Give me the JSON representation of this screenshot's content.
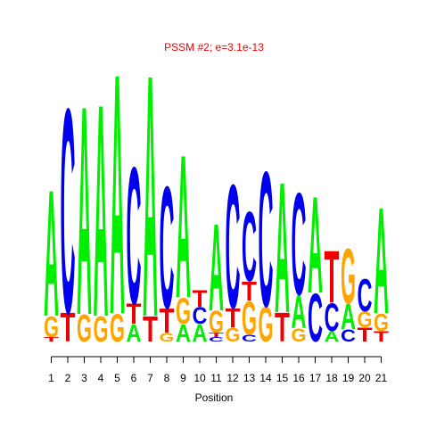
{
  "chart_data": {
    "type": "sequence-logo",
    "title": "PSSM #2; e=3.1e-13",
    "xlabel": "Position",
    "ylabel": "",
    "x": [
      1,
      2,
      3,
      4,
      5,
      6,
      7,
      8,
      9,
      10,
      11,
      12,
      13,
      14,
      15,
      16,
      17,
      18,
      19,
      20,
      21
    ],
    "colors": {
      "A": "#00ee00",
      "C": "#0000ee",
      "G": "#ffa500",
      "T": "#ee0000",
      "title": "#ee0000"
    },
    "positions": [
      {
        "position": 1,
        "letters": [
          {
            "base": "T",
            "height": 0.05
          },
          {
            "base": "G",
            "height": 0.24
          },
          {
            "base": "A",
            "height": 1.45
          }
        ]
      },
      {
        "position": 2,
        "letters": [
          {
            "base": "T",
            "height": 0.33
          },
          {
            "base": "C",
            "height": 2.35
          }
        ]
      },
      {
        "position": 3,
        "letters": [
          {
            "base": "G",
            "height": 0.31
          },
          {
            "base": "A",
            "height": 2.4
          }
        ]
      },
      {
        "position": 4,
        "letters": [
          {
            "base": "G",
            "height": 0.29
          },
          {
            "base": "A",
            "height": 2.44
          }
        ]
      },
      {
        "position": 5,
        "letters": [
          {
            "base": "G",
            "height": 0.32
          },
          {
            "base": "A",
            "height": 2.76
          }
        ]
      },
      {
        "position": 6,
        "letters": [
          {
            "base": "A",
            "height": 0.2
          },
          {
            "base": "T",
            "height": 0.23
          },
          {
            "base": "C",
            "height": 1.57
          }
        ]
      },
      {
        "position": 7,
        "letters": [
          {
            "base": "T",
            "height": 0.29
          },
          {
            "base": "A",
            "height": 2.78
          }
        ]
      },
      {
        "position": 8,
        "letters": [
          {
            "base": "G",
            "height": 0.1
          },
          {
            "base": "T",
            "height": 0.28
          },
          {
            "base": "C",
            "height": 1.4
          }
        ]
      },
      {
        "position": 9,
        "letters": [
          {
            "base": "A",
            "height": 0.2
          },
          {
            "base": "G",
            "height": 0.3
          },
          {
            "base": "A",
            "height": 1.64
          }
        ]
      },
      {
        "position": 10,
        "letters": [
          {
            "base": "A",
            "height": 0.2
          },
          {
            "base": "C",
            "height": 0.19
          },
          {
            "base": "T",
            "height": 0.19
          }
        ]
      },
      {
        "position": 11,
        "letters": [
          {
            "base": "C",
            "height": 0.05
          },
          {
            "base": "T",
            "height": 0.05
          },
          {
            "base": "G",
            "height": 0.25
          },
          {
            "base": "A",
            "height": 1.0
          }
        ]
      },
      {
        "position": 12,
        "letters": [
          {
            "base": "G",
            "height": 0.16
          },
          {
            "base": "T",
            "height": 0.22
          },
          {
            "base": "C",
            "height": 1.42
          }
        ]
      },
      {
        "position": 13,
        "letters": [
          {
            "base": "C",
            "height": 0.08
          },
          {
            "base": "G",
            "height": 0.38
          },
          {
            "base": "T",
            "height": 0.22
          },
          {
            "base": "C",
            "height": 0.8
          }
        ]
      },
      {
        "position": 14,
        "letters": [
          {
            "base": "G",
            "height": 0.4
          },
          {
            "base": "C",
            "height": 1.55
          }
        ]
      },
      {
        "position": 15,
        "letters": [
          {
            "base": "T",
            "height": 0.33
          },
          {
            "base": "A",
            "height": 1.5
          }
        ]
      },
      {
        "position": 16,
        "letters": [
          {
            "base": "G",
            "height": 0.15
          },
          {
            "base": "A",
            "height": 0.38
          },
          {
            "base": "C",
            "height": 1.17
          }
        ]
      },
      {
        "position": 17,
        "letters": [
          {
            "base": "C",
            "height": 0.55
          },
          {
            "base": "A",
            "height": 1.11
          }
        ]
      },
      {
        "position": 18,
        "letters": [
          {
            "base": "A",
            "height": 0.12
          },
          {
            "base": "C",
            "height": 0.32
          },
          {
            "base": "T",
            "height": 0.6
          }
        ]
      },
      {
        "position": 19,
        "letters": [
          {
            "base": "C",
            "height": 0.14
          },
          {
            "base": "A",
            "height": 0.29
          },
          {
            "base": "G",
            "height": 0.63
          }
        ]
      },
      {
        "position": 20,
        "letters": [
          {
            "base": "T",
            "height": 0.16
          },
          {
            "base": "G",
            "height": 0.18
          },
          {
            "base": "C",
            "height": 0.37
          }
        ]
      },
      {
        "position": 21,
        "letters": [
          {
            "base": "T",
            "height": 0.12
          },
          {
            "base": "G",
            "height": 0.2
          },
          {
            "base": "A",
            "height": 1.22
          }
        ]
      }
    ]
  }
}
